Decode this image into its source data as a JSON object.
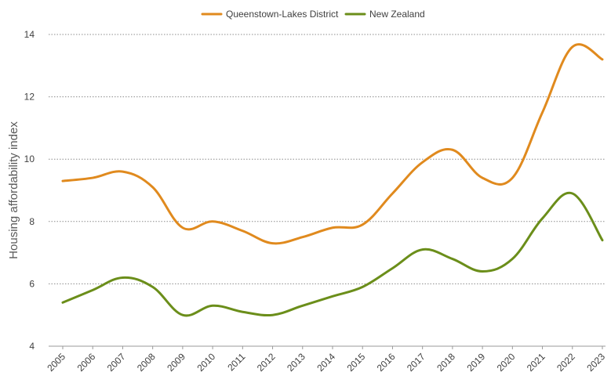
{
  "chart_data": {
    "type": "line",
    "ylabel": "Housing affordability index",
    "xlabel": "",
    "title": "",
    "ylim": [
      4,
      14
    ],
    "yticks": [
      4,
      6,
      8,
      10,
      12,
      14
    ],
    "legend_position": "top-center",
    "grid": "horizontal dotted",
    "x": [
      "2005",
      "2006",
      "2007",
      "2008",
      "2009",
      "2010",
      "2011",
      "2012",
      "2013",
      "2014",
      "2015",
      "2016",
      "2017",
      "2018",
      "2019",
      "2020",
      "2021",
      "2022",
      "2023"
    ],
    "series": [
      {
        "name": "Queenstown-Lakes District",
        "color": "#E08A1E",
        "values": [
          9.3,
          9.4,
          9.6,
          9.1,
          7.8,
          8.0,
          7.7,
          7.3,
          7.5,
          7.8,
          7.9,
          8.9,
          9.9,
          10.3,
          9.4,
          9.4,
          11.5,
          13.6,
          13.2
        ]
      },
      {
        "name": "New Zealand",
        "color": "#6B8E1A",
        "values": [
          5.4,
          5.8,
          6.2,
          5.9,
          5.0,
          5.3,
          5.1,
          5.0,
          5.3,
          5.6,
          5.9,
          6.5,
          7.1,
          6.8,
          6.4,
          6.8,
          8.1,
          8.9,
          7.4
        ]
      }
    ]
  }
}
